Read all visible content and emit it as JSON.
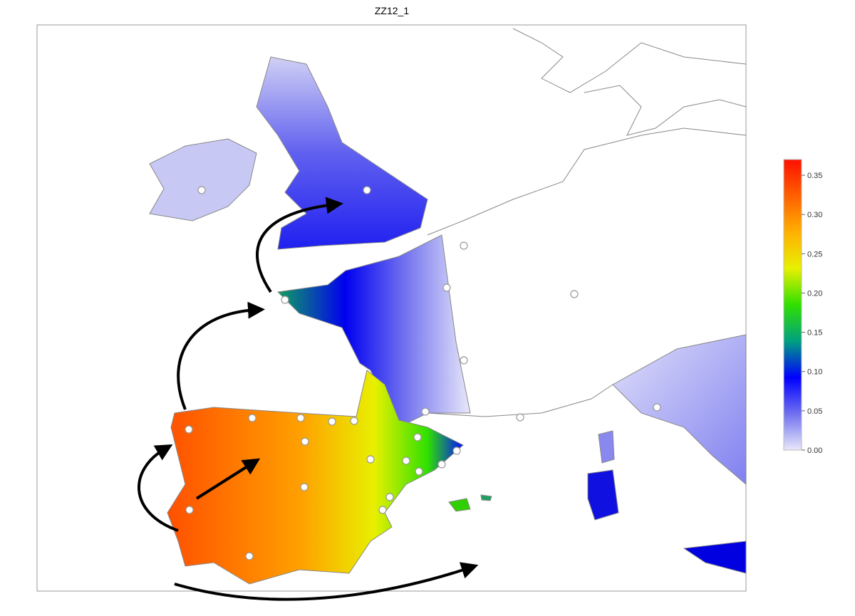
{
  "title": "ZZ12_1",
  "colorbar": {
    "range": [
      0,
      0.37
    ],
    "ticks": [
      {
        "value": 0,
        "label": "0.00"
      },
      {
        "value": 0.05,
        "label": "0.05"
      },
      {
        "value": 0.1,
        "label": "0.10"
      },
      {
        "value": 0.15,
        "label": "0.15"
      },
      {
        "value": 0.2,
        "label": "0.20"
      },
      {
        "value": 0.25,
        "label": "0.25"
      },
      {
        "value": 0.3,
        "label": "0.30"
      },
      {
        "value": 0.35,
        "label": "0.35"
      }
    ],
    "colors": [
      "#e8e8fa",
      "#7070f0",
      "#0000ff",
      "#00a080",
      "#30e000",
      "#e8f000",
      "#ffb000",
      "#ff6000",
      "#ff1000"
    ]
  }
}
